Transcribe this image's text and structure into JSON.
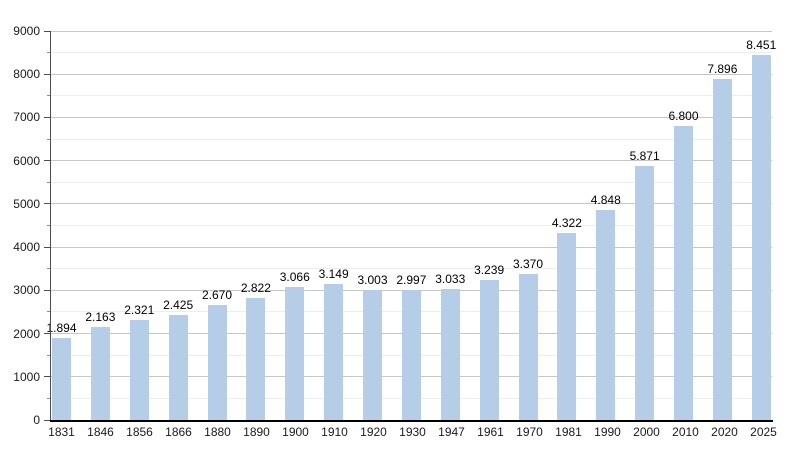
{
  "page": {
    "background_color": "#ffffff"
  },
  "chart_data": {
    "type": "bar",
    "title": "",
    "xlabel": "",
    "ylabel": "",
    "categories": [
      "1831",
      "1846",
      "1856",
      "1866",
      "1880",
      "1890",
      "1900",
      "1910",
      "1920",
      "1930",
      "1947",
      "1961",
      "1970",
      "1981",
      "1990",
      "2000",
      "2010",
      "2020",
      "2025"
    ],
    "values": [
      1894,
      2163,
      2321,
      2425,
      2670,
      2822,
      3066,
      3149,
      3003,
      2997,
      3033,
      3239,
      3370,
      4322,
      4848,
      5871,
      6800,
      7896,
      8451
    ],
    "bar_labels": [
      "1.894",
      "2.163",
      "2.321",
      "2.425",
      "2.670",
      "2.822",
      "3.066",
      "3.149",
      "3.003",
      "2.997",
      "3.033",
      "3.239",
      "3.370",
      "4.322",
      "4.848",
      "5.871",
      "6.800",
      "7.896",
      "8.451"
    ],
    "ylim": [
      0,
      9000
    ],
    "y_major_step": 1000,
    "y_minor_step": 500,
    "ytick_labels": [
      "0",
      "1000",
      "2000",
      "3000",
      "4000",
      "5000",
      "6000",
      "7000",
      "8000",
      "9000"
    ],
    "grid": true,
    "legend_position": "none",
    "colors": {
      "bar_fill": "#b5cde6",
      "grid_major": "#c7c7c7",
      "grid_minor": "#ededed",
      "axis_y": "#4d4d4d",
      "axis_x": "#000000",
      "text": "#1a1a1a"
    }
  }
}
